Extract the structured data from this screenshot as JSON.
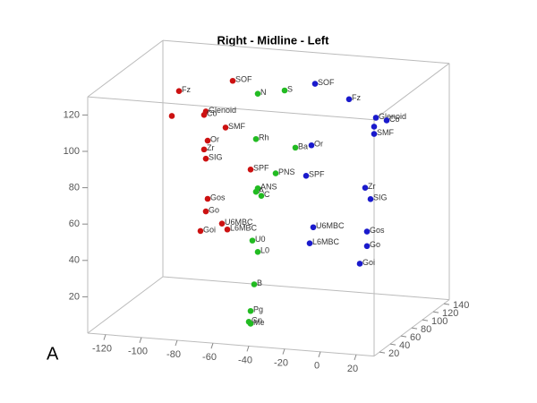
{
  "chart_data": {
    "type": "scatter3d",
    "title": "Right - Midline - Left",
    "panel_label": "A",
    "xlim": [
      -130,
      30
    ],
    "ylim": [
      0,
      130
    ],
    "zlim": [
      10,
      150
    ],
    "xticks": [
      -120,
      -100,
      -80,
      -60,
      -40,
      -20,
      0,
      20
    ],
    "yticks": [
      20,
      40,
      60,
      80,
      100,
      120
    ],
    "zticks": [
      20,
      40,
      60,
      80,
      100,
      120,
      140
    ],
    "series": [
      {
        "color": "#cc1111",
        "labels": [
          "Fz",
          "SOF",
          "Glenoid",
          "Co",
          null,
          "SMF",
          "Or",
          "Zr",
          "SIG",
          "SPF",
          "Gos",
          "Go",
          "U6MBC",
          "L6MBC",
          "Goi"
        ],
        "x": [
          -100,
          -70,
          -85,
          -86,
          -104,
          -74,
          -84,
          -86,
          -85,
          -60,
          -84,
          -85,
          -76,
          -73,
          -88
        ],
        "y": [
          120,
          128,
          110,
          108,
          106,
          102,
          94,
          89,
          84,
          80,
          62,
          55,
          49,
          46,
          44
        ],
        "z": [
          80,
          80,
          80,
          80,
          80,
          80,
          80,
          80,
          80,
          80,
          80,
          80,
          80,
          80,
          80
        ]
      },
      {
        "color": "#22bb22",
        "labels": [
          "N",
          "S",
          "Rh",
          "Ba",
          "PNS",
          "ANS",
          "A",
          "C",
          "U0",
          "L0",
          "B",
          "Pg",
          "Gn",
          "Me"
        ],
        "x": [
          -56,
          -41,
          -57,
          -35,
          -46,
          -56,
          -57,
          -54,
          -59,
          -56,
          -58,
          -48,
          -49,
          -48
        ],
        "y": [
          122,
          125,
          97,
          94,
          79,
          70,
          68,
          66,
          41,
          35,
          17,
          12,
          6,
          5
        ],
        "z": [
          80,
          80,
          80,
          80,
          80,
          80,
          80,
          80,
          80,
          80,
          80,
          40,
          40,
          40
        ]
      },
      {
        "color": "#1a1acc",
        "labels": [
          "SOF",
          "Fz",
          "Glenoid",
          "Co",
          null,
          "SMF",
          "Or",
          "SPF",
          "Zr",
          "SIG",
          "U6MBC",
          "L6MBC",
          "Gos",
          "Go",
          "Goi"
        ],
        "x": [
          -24,
          -5,
          10,
          16,
          9,
          9,
          -26,
          -29,
          4,
          7,
          -25,
          -27,
          5,
          5,
          1
        ],
        "y": [
          130,
          123,
          114,
          113,
          109,
          105,
          96,
          79,
          75,
          69,
          51,
          42,
          51,
          43,
          33
        ],
        "z": [
          80,
          80,
          80,
          80,
          80,
          80,
          80,
          80,
          80,
          80,
          80,
          80,
          80,
          80,
          80
        ]
      }
    ]
  }
}
